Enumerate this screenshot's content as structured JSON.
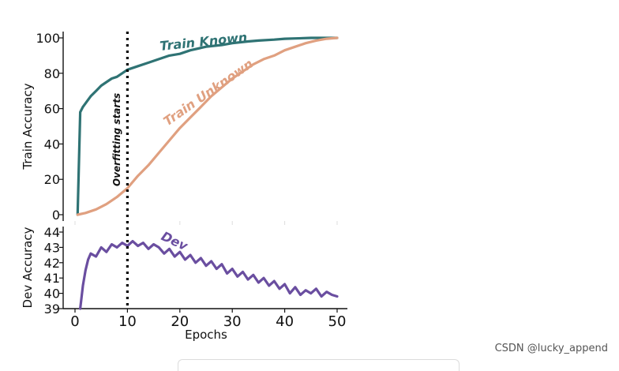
{
  "chart_data": [
    {
      "type": "line",
      "ylabel": "Train Accuracy",
      "ylim": [
        0,
        100
      ],
      "yticks": [
        "0",
        "20",
        "40",
        "60",
        "80",
        "100"
      ],
      "xlim": [
        0,
        50
      ],
      "grid": false,
      "series": [
        {
          "name": "Train Known",
          "color": "#2f7374",
          "x": [
            0.5,
            1,
            1.5,
            2,
            3,
            4,
            5,
            6,
            7,
            8,
            9,
            10,
            12,
            14,
            16,
            18,
            20,
            22,
            25,
            28,
            30,
            33,
            35,
            38,
            40,
            42,
            45,
            48,
            50
          ],
          "y": [
            0,
            58,
            61,
            63,
            67,
            70,
            73,
            75,
            77,
            78,
            80,
            82,
            84,
            86,
            88,
            90,
            91,
            93,
            95,
            96,
            97,
            98,
            98.5,
            99,
            99.5,
            99.7,
            100,
            100,
            100
          ]
        },
        {
          "name": "Train Unknown",
          "color": "#e0a080",
          "x": [
            0.5,
            2,
            4,
            6,
            8,
            10,
            12,
            14,
            16,
            18,
            20,
            22,
            24,
            26,
            28,
            30,
            32,
            34,
            36,
            38,
            40,
            42,
            44,
            46,
            48,
            50
          ],
          "y": [
            0,
            1,
            3,
            6,
            10,
            15,
            22,
            28,
            35,
            42,
            49,
            55,
            61,
            67,
            72,
            77,
            81,
            85,
            88,
            90,
            93,
            95,
            97,
            98.5,
            99.5,
            100
          ]
        }
      ]
    },
    {
      "type": "line",
      "ylabel": "Dev Accuracy",
      "xlabel": "Epochs",
      "ylim": [
        39,
        44
      ],
      "yticks": [
        "39",
        "40",
        "41",
        "42",
        "43",
        "44"
      ],
      "xticks": [
        "0",
        "10",
        "20",
        "30",
        "40",
        "50"
      ],
      "xlim": [
        0,
        50
      ],
      "grid": false,
      "series": [
        {
          "name": "Dev",
          "color": "#6a4ea0",
          "x": [
            1,
            1.5,
            2,
            2.5,
            3,
            4,
            5,
            6,
            7,
            8,
            9,
            10,
            11,
            12,
            13,
            14,
            15,
            16,
            17,
            18,
            19,
            20,
            21,
            22,
            23,
            24,
            25,
            26,
            27,
            28,
            29,
            30,
            31,
            32,
            33,
            34,
            35,
            36,
            37,
            38,
            39,
            40,
            41,
            42,
            43,
            44,
            45,
            46,
            47,
            48,
            49,
            50
          ],
          "y": [
            39,
            40.5,
            41.5,
            42.2,
            42.6,
            42.4,
            43.0,
            42.7,
            43.2,
            43.0,
            43.3,
            43.1,
            43.4,
            43.1,
            43.3,
            42.9,
            43.2,
            43.0,
            42.6,
            42.9,
            42.4,
            42.7,
            42.2,
            42.5,
            42.0,
            42.3,
            41.8,
            42.1,
            41.6,
            41.9,
            41.3,
            41.6,
            41.1,
            41.4,
            40.9,
            41.2,
            40.7,
            41.0,
            40.5,
            40.8,
            40.3,
            40.6,
            40.0,
            40.4,
            39.9,
            40.2,
            40.0,
            40.3,
            39.8,
            40.1,
            39.9,
            39.8
          ]
        }
      ]
    }
  ],
  "annotation": {
    "text": "Overfitting starts",
    "x": 10,
    "color": "#000000"
  },
  "watermark": "CSDN @lucky_append"
}
